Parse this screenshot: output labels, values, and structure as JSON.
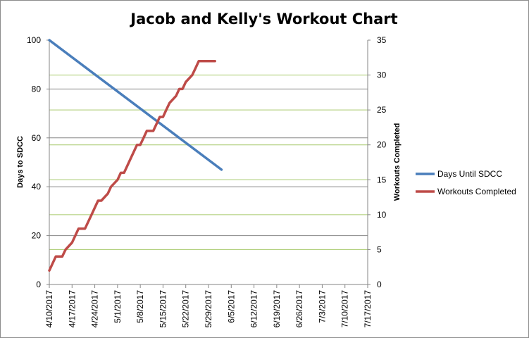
{
  "chart_data": {
    "type": "line",
    "title": "Jacob and Kelly's Workout Chart",
    "xlabel": "",
    "x_tick_labels": [
      "4/10/2017",
      "4/17/2017",
      "4/24/2017",
      "5/1/2017",
      "5/8/2017",
      "5/15/2017",
      "5/22/2017",
      "5/29/2017",
      "6/5/2017",
      "6/12/2017",
      "6/19/2017",
      "6/26/2017",
      "7/3/2017",
      "7/10/2017",
      "7/17/2017"
    ],
    "xlim": [
      "4/10/2017",
      "7/17/2017"
    ],
    "y_left": {
      "label": "Days  to SDCC",
      "ylim": [
        0,
        100
      ],
      "ticks": [
        0,
        20,
        40,
        60,
        80,
        100
      ]
    },
    "y_right": {
      "label": "Workouts Completed",
      "ylim": [
        0,
        35
      ],
      "ticks": [
        0,
        5,
        10,
        15,
        20,
        25,
        30,
        35
      ]
    },
    "grid": true,
    "legend_position": "right",
    "series": [
      {
        "name": "Days Until SDCC",
        "axis": "left",
        "color": "#4a7ebb",
        "x": [
          "4/10/2017",
          "6/2/2017"
        ],
        "y": [
          100,
          47
        ]
      },
      {
        "name": "Workouts Completed",
        "axis": "right",
        "color": "#be4b48",
        "x": [
          "4/10/2017",
          "4/12/2017",
          "4/14/2017",
          "4/15/2017",
          "4/17/2017",
          "4/18/2017",
          "4/19/2017",
          "4/21/2017",
          "4/22/2017",
          "4/23/2017",
          "4/24/2017",
          "4/25/2017",
          "4/26/2017",
          "4/28/2017",
          "4/29/2017",
          "5/1/2017",
          "5/2/2017",
          "5/3/2017",
          "5/4/2017",
          "5/5/2017",
          "5/6/2017",
          "5/7/2017",
          "5/8/2017",
          "5/9/2017",
          "5/10/2017",
          "5/12/2017",
          "5/13/2017",
          "5/14/2017",
          "5/15/2017",
          "5/16/2017",
          "5/17/2017",
          "5/19/2017",
          "5/20/2017",
          "5/21/2017",
          "5/22/2017",
          "5/24/2017",
          "5/25/2017",
          "5/26/2017",
          "5/27/2017",
          "5/28/2017",
          "5/29/2017",
          "5/30/2017",
          "5/31/2017"
        ],
        "y": [
          2,
          4,
          4,
          5,
          6,
          7,
          8,
          8,
          9,
          10,
          11,
          12,
          12,
          13,
          14,
          15,
          16,
          16,
          17,
          18,
          19,
          20,
          20,
          21,
          22,
          22,
          23,
          24,
          24,
          25,
          26,
          27,
          28,
          28,
          29,
          30,
          31,
          32,
          32,
          32,
          32,
          32,
          32
        ]
      }
    ]
  }
}
